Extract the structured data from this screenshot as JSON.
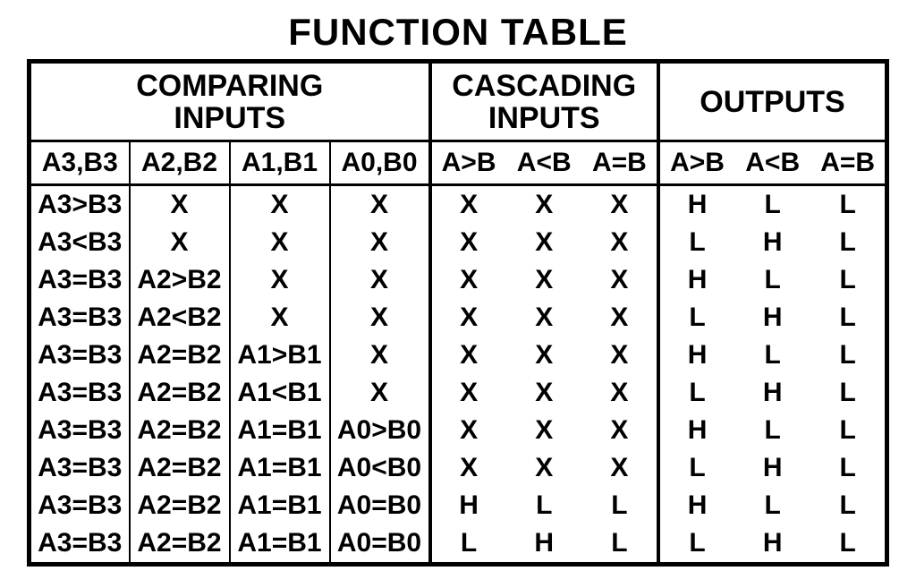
{
  "title": "FUNCTION TABLE",
  "sections": {
    "comparing": {
      "line1": "COMPARING",
      "line2": "INPUTS"
    },
    "cascading": {
      "line1": "CASCADING",
      "line2": "INPUTS"
    },
    "outputs": {
      "line1": "OUTPUTS"
    }
  },
  "subheaders": {
    "cmp": [
      "A3,B3",
      "A2,B2",
      "A1,B1",
      "A0,B0"
    ],
    "casc": [
      "A>B",
      "A<B",
      "A=B"
    ],
    "out": [
      "A>B",
      "A<B",
      "A=B"
    ]
  },
  "rows": [
    {
      "cmp": [
        "A3>B3",
        "X",
        "X",
        "X"
      ],
      "casc": [
        "X",
        "X",
        "X"
      ],
      "out": [
        "H",
        "L",
        "L"
      ]
    },
    {
      "cmp": [
        "A3<B3",
        "X",
        "X",
        "X"
      ],
      "casc": [
        "X",
        "X",
        "X"
      ],
      "out": [
        "L",
        "H",
        "L"
      ]
    },
    {
      "cmp": [
        "A3=B3",
        "A2>B2",
        "X",
        "X"
      ],
      "casc": [
        "X",
        "X",
        "X"
      ],
      "out": [
        "H",
        "L",
        "L"
      ]
    },
    {
      "cmp": [
        "A3=B3",
        "A2<B2",
        "X",
        "X"
      ],
      "casc": [
        "X",
        "X",
        "X"
      ],
      "out": [
        "L",
        "H",
        "L"
      ]
    },
    {
      "cmp": [
        "A3=B3",
        "A2=B2",
        "A1>B1",
        "X"
      ],
      "casc": [
        "X",
        "X",
        "X"
      ],
      "out": [
        "H",
        "L",
        "L"
      ]
    },
    {
      "cmp": [
        "A3=B3",
        "A2=B2",
        "A1<B1",
        "X"
      ],
      "casc": [
        "X",
        "X",
        "X"
      ],
      "out": [
        "L",
        "H",
        "L"
      ]
    },
    {
      "cmp": [
        "A3=B3",
        "A2=B2",
        "A1=B1",
        "A0>B0"
      ],
      "casc": [
        "X",
        "X",
        "X"
      ],
      "out": [
        "H",
        "L",
        "L"
      ]
    },
    {
      "cmp": [
        "A3=B3",
        "A2=B2",
        "A1=B1",
        "A0<B0"
      ],
      "casc": [
        "X",
        "X",
        "X"
      ],
      "out": [
        "L",
        "H",
        "L"
      ]
    },
    {
      "cmp": [
        "A3=B3",
        "A2=B2",
        "A1=B1",
        "A0=B0"
      ],
      "casc": [
        "H",
        "L",
        "L"
      ],
      "out": [
        "H",
        "L",
        "L"
      ]
    },
    {
      "cmp": [
        "A3=B3",
        "A2=B2",
        "A1=B1",
        "A0=B0"
      ],
      "casc": [
        "L",
        "H",
        "L"
      ],
      "out": [
        "L",
        "H",
        "L"
      ]
    }
  ],
  "style": {
    "colors": {
      "background": "#ffffff",
      "text": "#000000",
      "border": "#000000"
    },
    "fontFamily": "Arial, Helvetica, sans-serif",
    "titleFontSizePx": 42,
    "sectionHeaderFontSizePx": 34,
    "subHeaderFontSizePx": 30,
    "dataFontSizePx": 30,
    "outerBorderPx": 5,
    "sectionBorderPx": 4,
    "rowBorderPx": 3,
    "thinColBorderPx": 2
  }
}
